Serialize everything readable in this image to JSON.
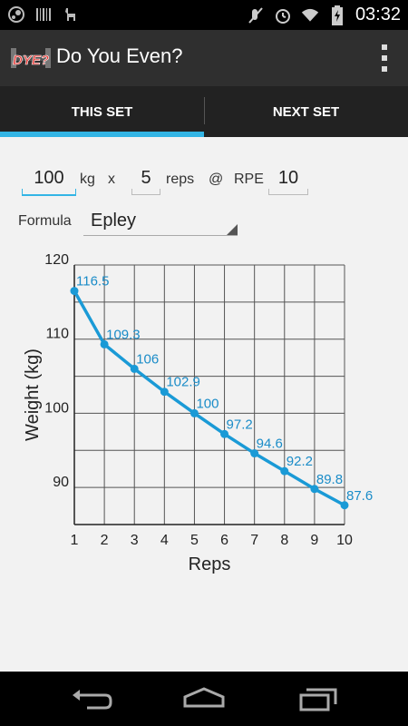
{
  "status_bar": {
    "time": "03:32",
    "icons_left": [
      "steam-icon",
      "barcode-icon",
      "alpaca-icon"
    ],
    "icons_right": [
      "mute-icon",
      "alarm-icon",
      "wifi-icon",
      "battery-icon"
    ]
  },
  "action_bar": {
    "logo_text": "DYE?",
    "title": "Do You Even?"
  },
  "tabs": [
    {
      "label": "THIS SET",
      "active": true
    },
    {
      "label": "NEXT SET",
      "active": false
    }
  ],
  "inputs": {
    "weight_value": "100",
    "weight_unit": "kg",
    "times": "x",
    "reps_value": "5",
    "reps_label": "reps",
    "at": "@",
    "rpe_label": "RPE",
    "rpe_value": "10"
  },
  "formula": {
    "label": "Formula",
    "selected": "Epley"
  },
  "colors": {
    "accent": "#33b5e5",
    "line": "#1a9ad6",
    "label": "#1a8cc8"
  },
  "chart_data": {
    "type": "line",
    "xlabel": "Reps",
    "ylabel": "Weight (kg)",
    "x": [
      1,
      2,
      3,
      4,
      5,
      6,
      7,
      8,
      9,
      10
    ],
    "values": [
      116.5,
      109.3,
      106,
      102.9,
      100,
      97.2,
      94.6,
      92.2,
      89.8,
      87.6
    ],
    "data_labels": [
      "116.5",
      "109.3",
      "106",
      "102.9",
      "100",
      "97.2",
      "94.6",
      "92.2",
      "89.8",
      "87.6"
    ],
    "x_ticks": [
      "1",
      "2",
      "3",
      "4",
      "5",
      "6",
      "7",
      "8",
      "9",
      "10"
    ],
    "y_ticks": [
      "120",
      "110",
      "100",
      "90"
    ],
    "y_tick_values": [
      120,
      110,
      100,
      90
    ],
    "xlim": [
      1,
      10
    ],
    "ylim": [
      85,
      120
    ],
    "grid": true
  }
}
